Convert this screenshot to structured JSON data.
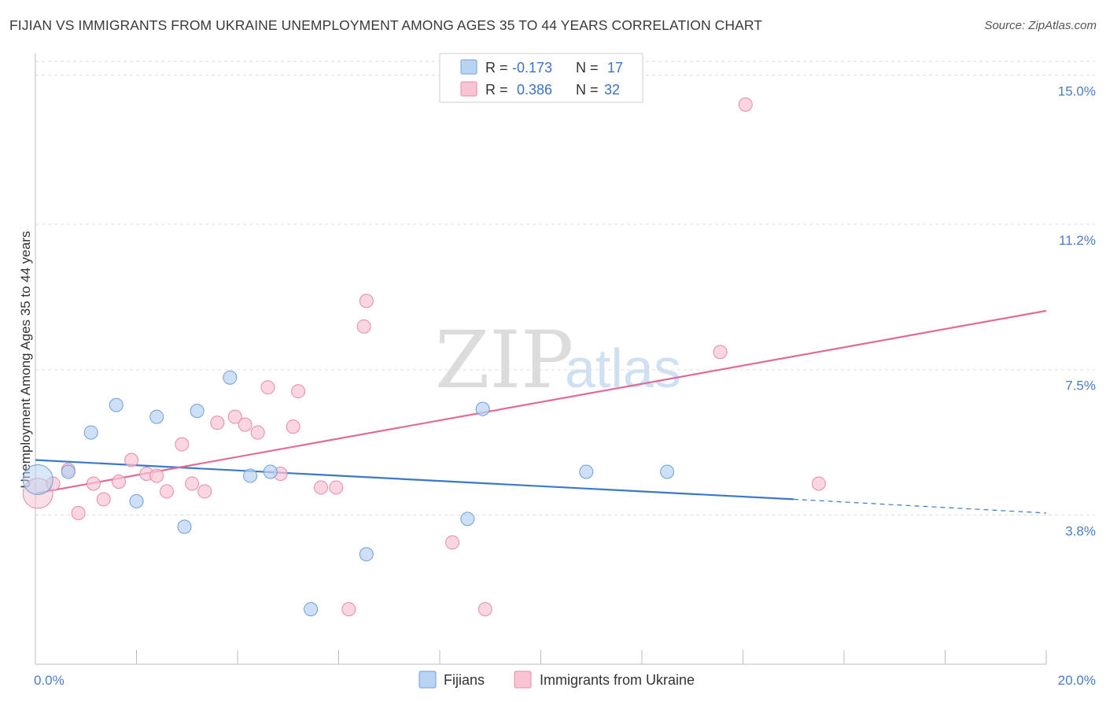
{
  "title": "FIJIAN VS IMMIGRANTS FROM UKRAINE UNEMPLOYMENT AMONG AGES 35 TO 44 YEARS CORRELATION CHART",
  "source": "Source: ZipAtlas.com",
  "watermark": {
    "zip": "ZIP",
    "atlas": "atlas"
  },
  "colors": {
    "fijians_fill": "#b9d3f3",
    "fijians_stroke": "#6f9fd8",
    "fijians_line": "#3b78c9",
    "ukraine_fill": "#f8c4d3",
    "ukraine_stroke": "#e88aa7",
    "ukraine_line": "#e06b96",
    "grid": "#dddddd",
    "tick_text": "#4a7cc7"
  },
  "chart_data": {
    "type": "scatter",
    "xlabel": "",
    "ylabel": "Unemployment Among Ages 35 to 44 years",
    "xlim": [
      0,
      20
    ],
    "ylim": [
      0,
      15.35
    ],
    "x_tick_labels": {
      "min": "0.0%",
      "max": "20.0%"
    },
    "y_ticks": [
      {
        "value": 3.8,
        "label": "3.8%"
      },
      {
        "value": 7.5,
        "label": "7.5%"
      },
      {
        "value": 11.2,
        "label": "11.2%"
      },
      {
        "value": 15.0,
        "label": "15.0%"
      }
    ],
    "legend": {
      "position": "top-center",
      "rows": [
        {
          "r_label": "R =",
          "r_value": "-0.173",
          "n_label": "N =",
          "n_value": "17"
        },
        {
          "r_label": "R =",
          "r_value": "0.386",
          "n_label": "N =",
          "n_value": "32"
        }
      ]
    },
    "bottom_legend": [
      "Fijians",
      "Immigrants from Ukraine"
    ],
    "series": [
      {
        "name": "Fijians",
        "points": [
          {
            "x": 0.05,
            "y": 4.7,
            "big": true
          },
          {
            "x": 0.65,
            "y": 4.9
          },
          {
            "x": 1.1,
            "y": 5.9
          },
          {
            "x": 1.6,
            "y": 6.6
          },
          {
            "x": 2.0,
            "y": 4.15
          },
          {
            "x": 2.4,
            "y": 6.3
          },
          {
            "x": 2.95,
            "y": 3.5
          },
          {
            "x": 3.2,
            "y": 6.45
          },
          {
            "x": 3.85,
            "y": 7.3
          },
          {
            "x": 4.25,
            "y": 4.8
          },
          {
            "x": 4.65,
            "y": 4.9
          },
          {
            "x": 5.45,
            "y": 1.4
          },
          {
            "x": 6.55,
            "y": 2.8
          },
          {
            "x": 8.55,
            "y": 3.7
          },
          {
            "x": 8.85,
            "y": 6.5
          },
          {
            "x": 10.9,
            "y": 4.9
          },
          {
            "x": 12.5,
            "y": 4.9
          }
        ],
        "trend": {
          "x0": 0.0,
          "y0": 5.2,
          "x1": 15.0,
          "y1": 4.2,
          "dash_to_x": 20.0,
          "dash_to_y": 3.85
        }
      },
      {
        "name": "Immigrants from Ukraine",
        "points": [
          {
            "x": 0.05,
            "y": 4.35,
            "big": true
          },
          {
            "x": 0.35,
            "y": 4.6
          },
          {
            "x": 0.65,
            "y": 4.95
          },
          {
            "x": 0.85,
            "y": 3.85
          },
          {
            "x": 1.15,
            "y": 4.6
          },
          {
            "x": 1.35,
            "y": 4.2
          },
          {
            "x": 1.65,
            "y": 4.65
          },
          {
            "x": 1.9,
            "y": 5.2
          },
          {
            "x": 2.2,
            "y": 4.85
          },
          {
            "x": 2.4,
            "y": 4.8
          },
          {
            "x": 2.6,
            "y": 4.4
          },
          {
            "x": 2.9,
            "y": 5.6
          },
          {
            "x": 3.1,
            "y": 4.6
          },
          {
            "x": 3.35,
            "y": 4.4
          },
          {
            "x": 3.6,
            "y": 6.15
          },
          {
            "x": 3.95,
            "y": 6.3
          },
          {
            "x": 4.15,
            "y": 6.1
          },
          {
            "x": 4.4,
            "y": 5.9
          },
          {
            "x": 4.6,
            "y": 7.05
          },
          {
            "x": 4.85,
            "y": 4.85
          },
          {
            "x": 5.1,
            "y": 6.05
          },
          {
            "x": 5.2,
            "y": 6.95
          },
          {
            "x": 5.65,
            "y": 4.5
          },
          {
            "x": 5.95,
            "y": 4.5
          },
          {
            "x": 6.2,
            "y": 1.4
          },
          {
            "x": 6.5,
            "y": 8.6
          },
          {
            "x": 6.55,
            "y": 9.25
          },
          {
            "x": 8.25,
            "y": 3.1
          },
          {
            "x": 8.9,
            "y": 1.4
          },
          {
            "x": 13.55,
            "y": 7.95
          },
          {
            "x": 14.05,
            "y": 14.25
          },
          {
            "x": 15.5,
            "y": 4.6
          }
        ],
        "trend": {
          "x0": 0.0,
          "y0": 4.35,
          "x1": 20.0,
          "y1": 9.0
        }
      }
    ]
  }
}
